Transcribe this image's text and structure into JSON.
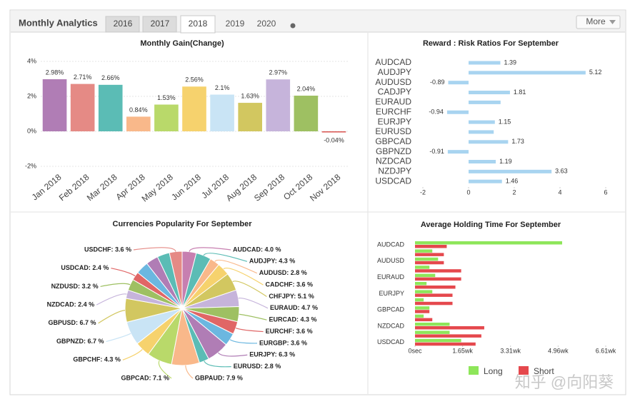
{
  "header": {
    "title": "Monthly Analytics",
    "tabs": [
      "2016",
      "2017",
      "2018",
      "2019",
      "2020"
    ],
    "more": "More"
  },
  "watermark": "知乎 @向阳葵",
  "chart_data": [
    {
      "type": "bar",
      "title": "Monthly Gain(Change)",
      "categories": [
        "Jan 2018",
        "Feb 2018",
        "Mar 2018",
        "Apr 2018",
        "May 2018",
        "Jun 2018",
        "Jul 2018",
        "Aug 2018",
        "Sep 2018",
        "Oct 2018",
        "Nov 2018"
      ],
      "values": [
        2.98,
        2.71,
        2.66,
        0.84,
        1.53,
        2.56,
        2.1,
        1.63,
        2.97,
        2.04,
        -0.04
      ],
      "value_labels": [
        "2.98%",
        "2.71%",
        "2.66%",
        "0.84%",
        "1.53%",
        "2.56%",
        "2.1%",
        "1.63%",
        "2.97%",
        "2.04%",
        "-0.04%"
      ],
      "colors": [
        "#b07db5",
        "#e58a85",
        "#5bbcb5",
        "#f9b88a",
        "#b9d96a",
        "#f6d26d",
        "#c9e4f5",
        "#d2c760",
        "#c6b4db",
        "#9ec062",
        "#d9534f"
      ],
      "ylim": [
        -2,
        4
      ],
      "yticks": [
        {
          "value": -2,
          "label": "-2%"
        },
        {
          "value": 0,
          "label": "0%"
        },
        {
          "value": 2,
          "label": "2%"
        },
        {
          "value": 4,
          "label": "4%"
        }
      ],
      "grid": true
    },
    {
      "type": "hbar",
      "title": "Reward : Risk Ratios For September",
      "categories": [
        "AUDCAD",
        "AUDJPY",
        "AUDUSD",
        "CADJPY",
        "EURAUD",
        "EURCHF",
        "EURJPY",
        "EURUSD",
        "GBPCAD",
        "GBPNZD",
        "NZDCAD",
        "NZDJPY",
        "USDCAD"
      ],
      "values": [
        1.39,
        5.12,
        -0.89,
        1.81,
        1.4,
        -0.94,
        1.15,
        1.1,
        1.73,
        -0.91,
        1.19,
        3.63,
        1.46
      ],
      "value_labels": [
        "1.39",
        "5.12",
        "-0.89",
        "1.81",
        null,
        "-0.94",
        "1.15",
        null,
        "1.73",
        "-0.91",
        "1.19",
        "3.63",
        "1.46"
      ],
      "color": "#a8d4f0",
      "xlim": [
        -2,
        6
      ],
      "xticks": [
        -2,
        0,
        2,
        4,
        6
      ]
    },
    {
      "type": "pie",
      "title": "Currencies Popularity For September",
      "values": [
        4.0,
        4.3,
        2.8,
        3.6,
        5.1,
        4.7,
        4.3,
        3.6,
        3.6,
        6.3,
        2.8,
        7.9,
        7.1,
        4.3,
        6.7,
        6.7,
        2.4,
        3.2,
        2.4,
        3.6,
        3.5,
        3.5,
        3.6
      ],
      "value_labels": [
        "AUDCAD: 4.0 %",
        "AUDJPY: 4.3 %",
        "AUDUSD: 2.8 %",
        "CADCHF: 3.6 %",
        "CHFJPY: 5.1 %",
        "EURAUD: 4.7 %",
        "EURCAD: 4.3 %",
        "EURCHF: 3.6 %",
        "EURGBP: 3.6 %",
        "EURJPY: 6.3 %",
        "EURUSD: 2.8 %",
        "GBPAUD: 7.9 %",
        "GBPCAD: 7.1 %",
        "GBPCHF: 4.3 %",
        "GBPNZD: 6.7 %",
        "GBPUSD: 6.7 %",
        "NZDCAD: 2.4 %",
        "NZDUSD: 3.2 %",
        "USDCAD: 2.4 %",
        null,
        null,
        null,
        "USDCHF: 3.6 %"
      ],
      "colors": [
        "#c77fb0",
        "#5bbcb5",
        "#f9b88a",
        "#f6d26d",
        "#d2c760",
        "#c6b4db",
        "#9ec062",
        "#e06666",
        "#6bb7e0",
        "#b07db5",
        "#5bbcb5",
        "#f9b88a",
        "#b9d96a",
        "#f6d26d",
        "#c9e4f5",
        "#d2c760",
        "#c6b4db",
        "#9ec062",
        "#e06666",
        "#6bb7e0",
        "#b07db5",
        "#5bbcb5",
        "#e58a85"
      ]
    },
    {
      "type": "hbar",
      "title": "Average Holding Time For September",
      "categories": [
        "AUDCAD",
        null,
        "AUDUSD",
        null,
        "EURAUD",
        null,
        "EURJPY",
        null,
        "GBPCAD",
        null,
        "NZDCAD",
        null,
        "USDCAD"
      ],
      "series": [
        {
          "name": "Long",
          "color": "#8ee65a",
          "values": [
            5.1,
            0.6,
            0.8,
            0.5,
            0.7,
            0.4,
            0.6,
            0.3,
            0.5,
            0.3,
            1.2,
            1.2,
            1.6
          ]
        },
        {
          "name": "Short",
          "color": "#e5484d",
          "values": [
            1.1,
            1.0,
            1.0,
            1.6,
            1.6,
            1.4,
            1.3,
            1.3,
            0.5,
            0.6,
            2.4,
            2.3,
            2.1
          ]
        }
      ],
      "xlim": [
        0,
        6.61
      ],
      "xticks": [
        {
          "value": 0,
          "label": "0sec"
        },
        {
          "value": 1.65,
          "label": "1.65wk"
        },
        {
          "value": 3.31,
          "label": "3.31wk"
        },
        {
          "value": 4.96,
          "label": "4.96wk"
        },
        {
          "value": 6.61,
          "label": "6.61wk"
        }
      ]
    }
  ]
}
